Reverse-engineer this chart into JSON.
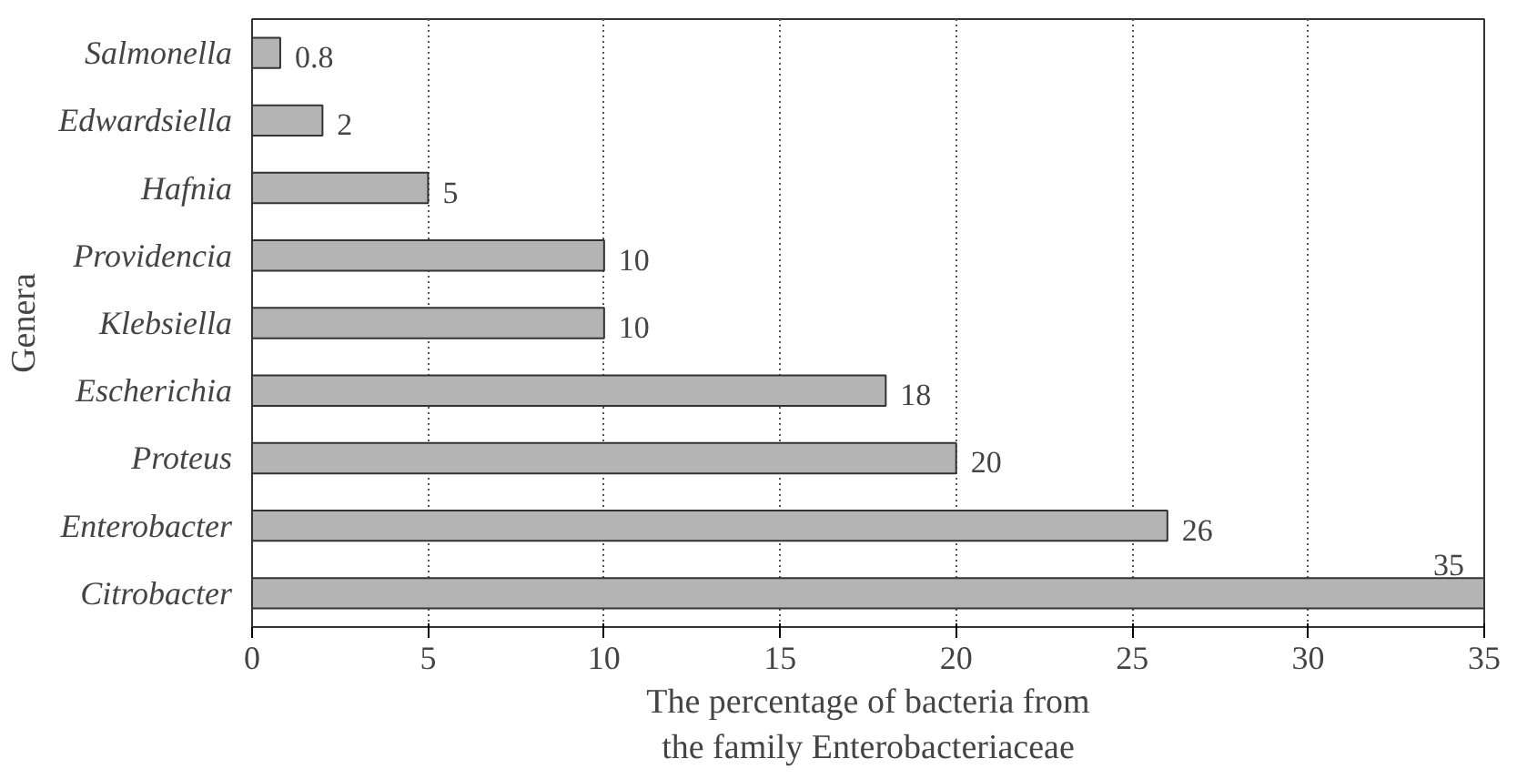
{
  "chart_data": {
    "type": "bar",
    "orientation": "horizontal",
    "categories": [
      "Salmonella",
      "Edwardsiella",
      "Hafnia",
      "Providencia",
      "Klebsiella",
      "Escherichia",
      "Proteus",
      "Enterobacter",
      "Citrobacter"
    ],
    "values": [
      0.8,
      2,
      5,
      10,
      10,
      18,
      20,
      26,
      35
    ],
    "color": "#b4b4b4",
    "xlim": [
      0,
      35
    ],
    "xticks": [
      0,
      5,
      10,
      15,
      20,
      25,
      30,
      35
    ],
    "xlabel": "The percentage of bacteria from\nthe family Enterobacteriaceae",
    "ylabel": "Genera",
    "grid": "x",
    "data_labels": true
  }
}
